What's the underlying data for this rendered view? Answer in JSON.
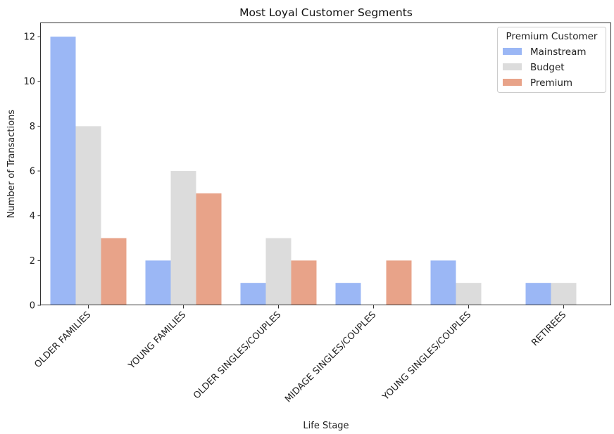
{
  "chart_data": {
    "type": "bar",
    "title": "Most Loyal Customer Segments",
    "xlabel": "Life Stage",
    "ylabel": "Number of Transactions",
    "categories": [
      "OLDER FAMILIES",
      "YOUNG FAMILIES",
      "OLDER SINGLES/COUPLES",
      "MIDAGE SINGLES/COUPLES",
      "YOUNG SINGLES/COUPLES",
      "RETIREES"
    ],
    "series": [
      {
        "name": "Mainstream",
        "color": "#9bb7f5",
        "values": [
          12,
          2,
          1,
          1,
          2,
          1
        ]
      },
      {
        "name": "Budget",
        "color": "#dcdcdc",
        "values": [
          8,
          6,
          3,
          0,
          1,
          1
        ]
      },
      {
        "name": "Premium",
        "color": "#e8a389",
        "values": [
          3,
          5,
          2,
          2,
          0,
          0
        ]
      }
    ],
    "ylim": [
      0,
      12.6
    ],
    "yticks": [
      0,
      2,
      4,
      6,
      8,
      10,
      12
    ],
    "grid": false,
    "legend": {
      "title": "Premium Customer",
      "placement": "top-right"
    }
  }
}
